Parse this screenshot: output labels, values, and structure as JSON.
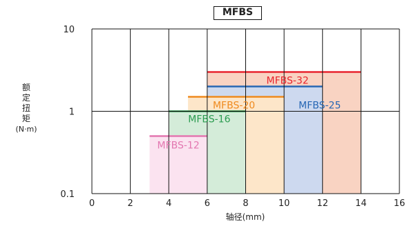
{
  "chart_data": {
    "type": "bar",
    "title": "MFBS",
    "ylabel": [
      "额",
      "定",
      "扭",
      "矩"
    ],
    "ylabel_unit": "(N·m)",
    "xlabel": "轴径(mm)",
    "xlim": [
      0,
      16
    ],
    "ylim": [
      0.1,
      10
    ],
    "yscale": "log",
    "grid": true,
    "x_ticks": [
      "0",
      "2",
      "4",
      "6",
      "8",
      "10",
      "12",
      "14",
      "16"
    ],
    "y_ticks": [
      "10",
      "1",
      "0.1"
    ],
    "bars": [
      {
        "name": "MFBS-12",
        "x_min": 3,
        "x_max": 6,
        "value": 0.5,
        "color": "#e377b0",
        "fill": "#fbe3f0"
      },
      {
        "name": "MFBS-16",
        "x_min": 4,
        "x_max": 8,
        "value": 1.0,
        "color": "#2a9b4f",
        "fill": "#d4ecd9"
      },
      {
        "name": "MFBS-20",
        "x_min": 5,
        "x_max": 10,
        "value": 1.5,
        "color": "#ef8a1e",
        "fill": "#fde6c9"
      },
      {
        "name": "MFBS-25",
        "x_min": 6,
        "x_max": 12,
        "value": 2.0,
        "color": "#2767b4",
        "fill": "#cdd9ef"
      },
      {
        "name": "MFBS-32",
        "x_min": 6,
        "x_max": 14,
        "value": 3.0,
        "color": "#e8242e",
        "fill": "#f9d3c2"
      }
    ]
  }
}
